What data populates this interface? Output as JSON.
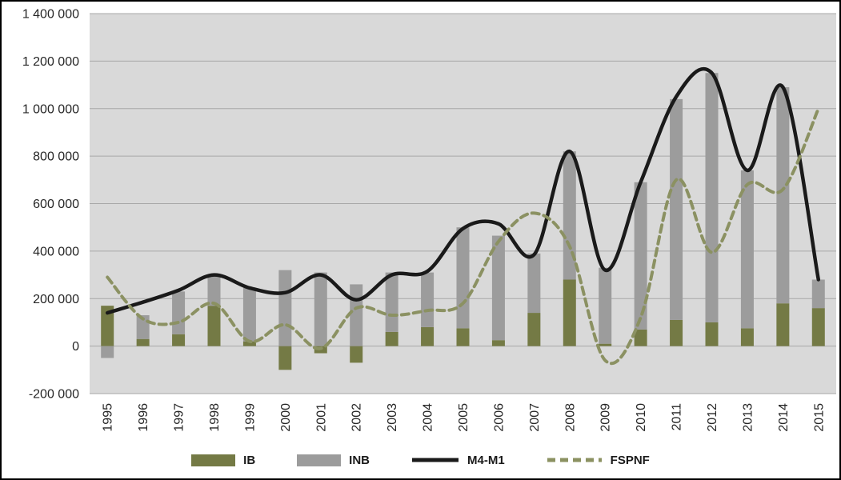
{
  "chart_data": {
    "type": "bar+line",
    "stacked_bars": true,
    "title": "",
    "categories": [
      "1995",
      "1996",
      "1997",
      "1998",
      "1999",
      "2000",
      "2001",
      "2002",
      "2003",
      "2004",
      "2005",
      "2006",
      "2007",
      "2008",
      "2009",
      "2010",
      "2011",
      "2012",
      "2013",
      "2014",
      "2015"
    ],
    "y_axis": {
      "min": -200000,
      "max": 1400000,
      "step": 200000,
      "tick_labels": [
        "1 400 000",
        "1 200 000",
        "1 000 000",
        "800 000",
        "600 000",
        "400 000",
        "200 000",
        "0",
        "-200 000"
      ]
    },
    "series": [
      {
        "name": "IB",
        "type": "bar",
        "color": "#747a45",
        "values": [
          170000,
          30000,
          50000,
          170000,
          20000,
          -100000,
          -30000,
          -70000,
          60000,
          80000,
          75000,
          25000,
          140000,
          280000,
          10000,
          70000,
          110000,
          100000,
          75000,
          180000,
          160000
        ]
      },
      {
        "name": "INB",
        "type": "bar",
        "color": "#9c9c9c",
        "values": [
          -50000,
          100000,
          180000,
          130000,
          225000,
          320000,
          310000,
          260000,
          250000,
          230000,
          425000,
          440000,
          250000,
          540000,
          320000,
          620000,
          930000,
          1050000,
          665000,
          910000,
          120000
        ]
      },
      {
        "name": "M4-M1",
        "type": "line",
        "dash": false,
        "color": "#1a1a1a",
        "values": [
          140000,
          185000,
          235000,
          300000,
          245000,
          225000,
          300000,
          195000,
          300000,
          315000,
          495000,
          515000,
          385000,
          820000,
          320000,
          690000,
          1050000,
          1150000,
          740000,
          1090000,
          280000
        ]
      },
      {
        "name": "FSPNF",
        "type": "line",
        "dash": true,
        "color": "#8b9162",
        "values": [
          290000,
          115000,
          100000,
          180000,
          20000,
          90000,
          -10000,
          160000,
          130000,
          150000,
          180000,
          440000,
          560000,
          420000,
          -60000,
          120000,
          700000,
          395000,
          680000,
          660000,
          1000000
        ]
      }
    ],
    "plot_background": "#d9d9d9",
    "gridline_color": "#a8a8a8",
    "legend_position": "bottom"
  }
}
